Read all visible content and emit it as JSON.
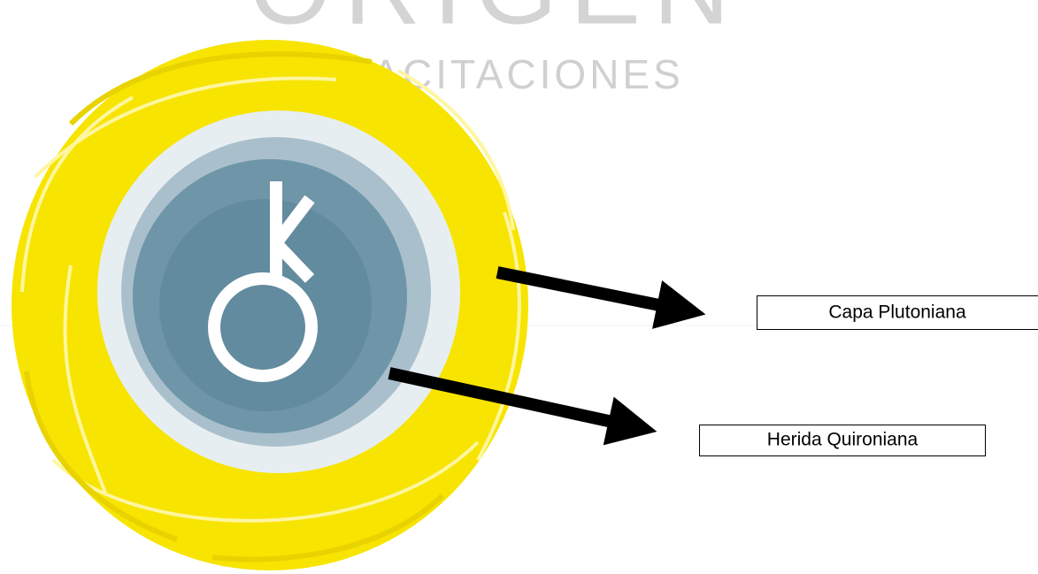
{
  "logo": {
    "title": "ORIGEN",
    "subtitle": "CAPACITACIONES"
  },
  "labels": [
    {
      "text": "Capa Plutoniana"
    },
    {
      "text": "Herida Quironiana"
    }
  ]
}
